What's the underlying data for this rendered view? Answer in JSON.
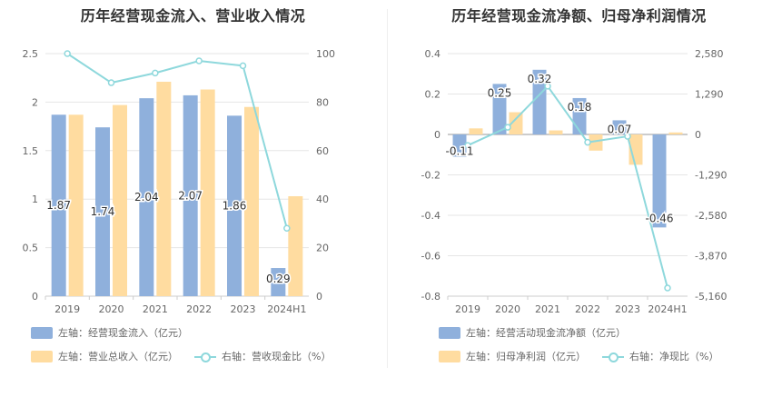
{
  "colors": {
    "bar_blue": "#8fb0dc",
    "bar_orange": "#ffdca0",
    "line_teal": "#8ed8dc",
    "text": "#333333",
    "axis_text": "#666666",
    "grid": "#e6e6e6"
  },
  "chart_data": [
    {
      "type": "bar",
      "title": "历年经营现金流入、营业收入情况",
      "categories": [
        "2019",
        "2020",
        "2021",
        "2022",
        "2023",
        "2024H1"
      ],
      "y_left_ticks": [
        "0",
        "0.5",
        "1",
        "1.5",
        "2",
        "2.5"
      ],
      "y_right_ticks": [
        "0",
        "20",
        "40",
        "60",
        "80",
        "100"
      ],
      "ylim_left": [
        0,
        2.5
      ],
      "ylim_right": [
        0,
        100
      ],
      "series": [
        {
          "name": "左轴：经营现金流入（亿元）",
          "axis": "left",
          "kind": "bar",
          "color": "#8fb0dc",
          "values": [
            1.87,
            1.74,
            2.04,
            2.07,
            1.86,
            0.29
          ],
          "labels": [
            "1.87",
            "1.74",
            "2.04",
            "2.07",
            "1.86",
            "0.29"
          ]
        },
        {
          "name": "左轴：营业总收入（亿元）",
          "axis": "left",
          "kind": "bar",
          "color": "#ffdca0",
          "values": [
            1.87,
            1.97,
            2.21,
            2.13,
            1.95,
            1.03
          ]
        },
        {
          "name": "右轴：营收现金比（%）",
          "axis": "right",
          "kind": "line",
          "color": "#8ed8dc",
          "values": [
            100,
            88,
            92,
            97,
            95,
            28
          ]
        }
      ],
      "grid": true
    },
    {
      "type": "bar",
      "title": "历年经营现金流净额、归母净利润情况",
      "categories": [
        "2019",
        "2020",
        "2021",
        "2022",
        "2023",
        "2024H1"
      ],
      "y_left_ticks": [
        "-0.8",
        "-0.6",
        "-0.4",
        "-0.2",
        "0",
        "0.2",
        "0.4"
      ],
      "y_right_ticks": [
        "-5,160",
        "-3,870",
        "-2,580",
        "-1,290",
        "0",
        "1,290",
        "2,580"
      ],
      "ylim_left": [
        -0.8,
        0.4
      ],
      "ylim_right": [
        -5160,
        2580
      ],
      "series": [
        {
          "name": "左轴：经营活动现金流净额（亿元）",
          "axis": "left",
          "kind": "bar",
          "color": "#8fb0dc",
          "values": [
            -0.11,
            0.25,
            0.32,
            0.18,
            0.07,
            -0.46
          ],
          "labels": [
            "-0.11",
            "0.25",
            "0.32",
            "0.18",
            "0.07",
            "-0.46"
          ]
        },
        {
          "name": "左轴：归母净利润（亿元）",
          "axis": "left",
          "kind": "bar",
          "color": "#ffdca0",
          "values": [
            0.03,
            0.11,
            0.02,
            -0.08,
            -0.15,
            0.01
          ]
        },
        {
          "name": "右轴：净现比（%）",
          "axis": "right",
          "kind": "line",
          "color": "#8ed8dc",
          "values": [
            -350,
            230,
            1540,
            -250,
            -60,
            -4900
          ]
        }
      ],
      "grid": true
    }
  ]
}
